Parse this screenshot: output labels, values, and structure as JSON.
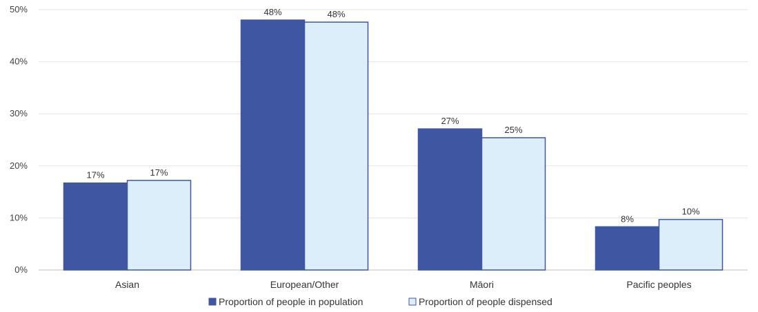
{
  "chart_data": {
    "type": "bar",
    "categories": [
      "Asian",
      "European/Other",
      "Māori",
      "Pacific peoples"
    ],
    "series": [
      {
        "name": "Proportion of people in population",
        "values": [
          16.7,
          48.0,
          27.1,
          8.3
        ],
        "labels": [
          "17%",
          "48%",
          "27%",
          "8%"
        ],
        "fill": "#3f56a3",
        "stroke": "#3f56a3"
      },
      {
        "name": "Proportion of people dispensed",
        "values": [
          17.2,
          47.6,
          25.4,
          9.7
        ],
        "labels": [
          "17%",
          "48%",
          "25%",
          "10%"
        ],
        "fill": "#ddeefb",
        "stroke": "#3f56a3"
      }
    ],
    "ylim": [
      0,
      50
    ],
    "yticks": [
      0,
      10,
      20,
      30,
      40,
      50
    ],
    "ytick_labels": [
      "0%",
      "10%",
      "20%",
      "30%",
      "40%",
      "50%"
    ],
    "title": "",
    "xlabel": "",
    "ylabel": "",
    "grid": true,
    "legend_position": "bottom-center"
  }
}
